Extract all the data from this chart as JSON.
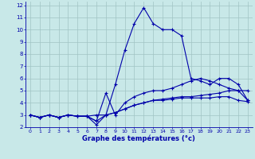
{
  "xlabel": "Graphe des températures (°c)",
  "background_color": "#c8e8e8",
  "grid_color": "#a0c4c4",
  "line_color": "#0000aa",
  "xlim": [
    -0.5,
    23.5
  ],
  "ylim": [
    2,
    12.3
  ],
  "xticks": [
    0,
    1,
    2,
    3,
    4,
    5,
    6,
    7,
    8,
    9,
    10,
    11,
    12,
    13,
    14,
    15,
    16,
    17,
    18,
    19,
    20,
    21,
    22,
    23
  ],
  "yticks": [
    2,
    3,
    4,
    5,
    6,
    7,
    8,
    9,
    10,
    11,
    12
  ],
  "line1_x": [
    0,
    1,
    2,
    3,
    4,
    5,
    6,
    7,
    8,
    9,
    10,
    11,
    12,
    13,
    14,
    15,
    16,
    17,
    18,
    19,
    20,
    21,
    22,
    23
  ],
  "line1_y": [
    3.0,
    2.8,
    3.0,
    2.8,
    3.0,
    2.9,
    2.9,
    2.2,
    3.0,
    5.5,
    8.3,
    10.5,
    11.8,
    10.5,
    10.0,
    10.0,
    9.5,
    6.0,
    5.8,
    5.5,
    6.0,
    6.0,
    5.5,
    4.2
  ],
  "line2_x": [
    0,
    1,
    2,
    3,
    4,
    5,
    6,
    7,
    8,
    9,
    10,
    11,
    12,
    13,
    14,
    15,
    16,
    17,
    18,
    19,
    20,
    21,
    22,
    23
  ],
  "line2_y": [
    3.0,
    2.8,
    3.0,
    2.8,
    3.0,
    2.9,
    2.9,
    2.5,
    4.8,
    3.0,
    4.0,
    4.5,
    4.8,
    5.0,
    5.0,
    5.2,
    5.5,
    5.8,
    6.0,
    5.8,
    5.5,
    5.2,
    5.0,
    4.2
  ],
  "line3_x": [
    0,
    1,
    2,
    3,
    4,
    5,
    6,
    7,
    8,
    9,
    10,
    11,
    12,
    13,
    14,
    15,
    16,
    17,
    18,
    19,
    20,
    21,
    22,
    23
  ],
  "line3_y": [
    3.0,
    2.8,
    3.0,
    2.8,
    3.0,
    2.9,
    2.9,
    3.0,
    3.0,
    3.2,
    3.5,
    3.8,
    4.0,
    4.2,
    4.3,
    4.4,
    4.5,
    4.5,
    4.6,
    4.7,
    4.8,
    5.0,
    5.0,
    5.0
  ],
  "line4_x": [
    0,
    1,
    2,
    3,
    4,
    5,
    6,
    7,
    8,
    9,
    10,
    11,
    12,
    13,
    14,
    15,
    16,
    17,
    18,
    19,
    20,
    21,
    22,
    23
  ],
  "line4_y": [
    3.0,
    2.8,
    3.0,
    2.8,
    3.0,
    2.9,
    2.9,
    2.5,
    3.0,
    3.2,
    3.5,
    3.8,
    4.0,
    4.2,
    4.2,
    4.3,
    4.4,
    4.4,
    4.4,
    4.4,
    4.5,
    4.5,
    4.2,
    4.1
  ]
}
